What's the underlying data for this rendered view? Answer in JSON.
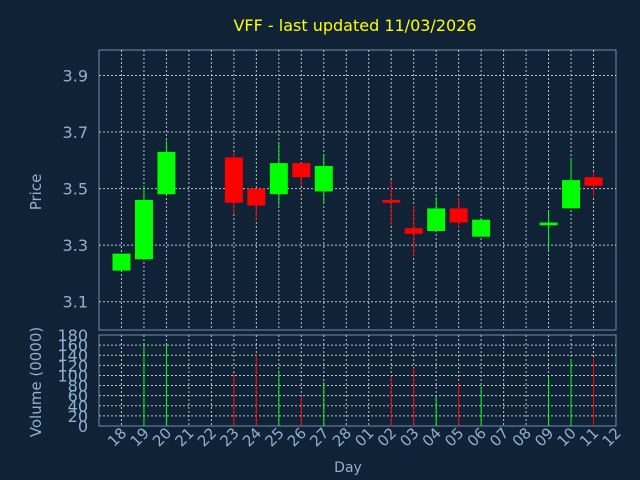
{
  "title": "VFF - last updated 11/03/2026",
  "colors": {
    "background": "#0f2236",
    "plot_border": "#6f8fb1",
    "grid": "#b8c4d0",
    "title": "#ffff00",
    "axis_text": "#8fb0d0",
    "up": "#00ff00",
    "down": "#ff0000"
  },
  "chart_data": [
    {
      "type": "candlestick",
      "ylabel": "Price",
      "ylim": [
        3.0,
        3.99
      ],
      "yticks": [
        3.1,
        3.3,
        3.5,
        3.7,
        3.9
      ],
      "grid": true,
      "series": [
        {
          "day": "18",
          "open": 3.21,
          "close": 3.27,
          "high": 3.27,
          "low": 3.21
        },
        {
          "day": "19",
          "open": 3.25,
          "close": 3.46,
          "high": 3.51,
          "low": 3.25
        },
        {
          "day": "20",
          "open": 3.48,
          "close": 3.63,
          "high": 3.67,
          "low": 3.48
        },
        {
          "day": "23",
          "open": 3.61,
          "close": 3.45,
          "high": 3.63,
          "low": 3.41
        },
        {
          "day": "24",
          "open": 3.5,
          "close": 3.44,
          "high": 3.5,
          "low": 3.39
        },
        {
          "day": "25",
          "open": 3.48,
          "close": 3.59,
          "high": 3.66,
          "low": 3.44
        },
        {
          "day": "26",
          "open": 3.59,
          "close": 3.54,
          "high": 3.59,
          "low": 3.51
        },
        {
          "day": "27",
          "open": 3.49,
          "close": 3.58,
          "high": 3.62,
          "low": 3.45
        },
        {
          "day": "02",
          "open": 3.46,
          "close": 3.45,
          "high": 3.53,
          "low": 3.37
        },
        {
          "day": "03",
          "open": 3.36,
          "close": 3.34,
          "high": 3.44,
          "low": 3.26
        },
        {
          "day": "04",
          "open": 3.35,
          "close": 3.43,
          "high": 3.47,
          "low": 3.35
        },
        {
          "day": "05",
          "open": 3.43,
          "close": 3.38,
          "high": 3.47,
          "low": 3.36
        },
        {
          "day": "06",
          "open": 3.33,
          "close": 3.39,
          "high": 3.39,
          "low": 3.33
        },
        {
          "day": "09",
          "open": 3.37,
          "close": 3.38,
          "high": 3.42,
          "low": 3.28
        },
        {
          "day": "10",
          "open": 3.43,
          "close": 3.53,
          "high": 3.61,
          "low": 3.43
        },
        {
          "day": "11",
          "open": 3.54,
          "close": 3.51,
          "high": 3.56,
          "low": 3.47
        }
      ]
    },
    {
      "type": "bar",
      "xlabel": "Day",
      "ylabel": "Volume (0000)",
      "ylim": [
        0,
        180
      ],
      "yticks": [
        0,
        20,
        40,
        60,
        80,
        100,
        120,
        140,
        160,
        180
      ],
      "categories": [
        "18",
        "19",
        "20",
        "21",
        "22",
        "23",
        "24",
        "25",
        "26",
        "27",
        "28",
        "01",
        "02",
        "03",
        "04",
        "05",
        "06",
        "07",
        "08",
        "09",
        "10",
        "11",
        "12"
      ],
      "grid": true,
      "series": [
        {
          "day": "18",
          "value": 0,
          "direction": "up"
        },
        {
          "day": "19",
          "value": 160,
          "direction": "up"
        },
        {
          "day": "20",
          "value": 160,
          "direction": "up"
        },
        {
          "day": "23",
          "value": 105,
          "direction": "down"
        },
        {
          "day": "24",
          "value": 140,
          "direction": "down"
        },
        {
          "day": "25",
          "value": 110,
          "direction": "up"
        },
        {
          "day": "26",
          "value": 60,
          "direction": "down"
        },
        {
          "day": "27",
          "value": 87,
          "direction": "up"
        },
        {
          "day": "02",
          "value": 98,
          "direction": "down"
        },
        {
          "day": "03",
          "value": 115,
          "direction": "down"
        },
        {
          "day": "04",
          "value": 58,
          "direction": "up"
        },
        {
          "day": "05",
          "value": 85,
          "direction": "down"
        },
        {
          "day": "06",
          "value": 78,
          "direction": "up"
        },
        {
          "day": "09",
          "value": 97,
          "direction": "up"
        },
        {
          "day": "10",
          "value": 132,
          "direction": "up"
        },
        {
          "day": "11",
          "value": 135,
          "direction": "down"
        }
      ]
    }
  ]
}
